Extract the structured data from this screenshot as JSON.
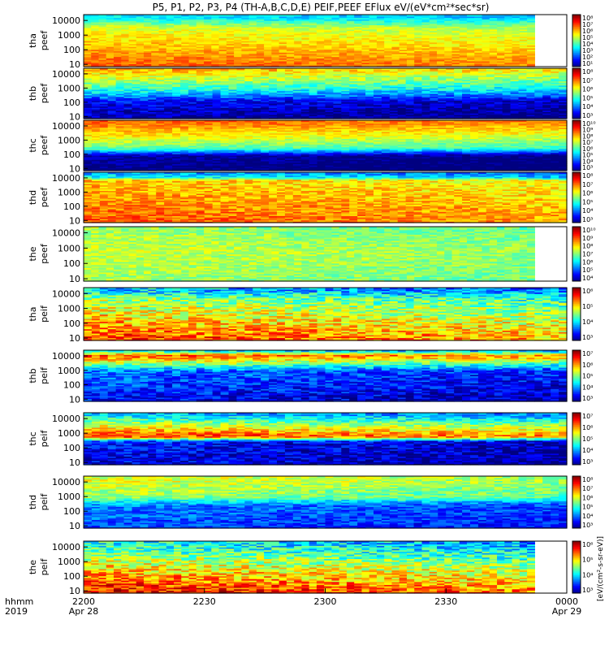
{
  "chart_data": {
    "type": "heatmap",
    "title": "P5, P1, P2, P3, P4 (TH-A,B,C,D,E) PEIF,PEEF EFlux eV/(eV*cm²*sec*sr)",
    "x_axis": {
      "row_labels": [
        "hhmm",
        "2019"
      ],
      "ticks": [
        {
          "label": "2200",
          "sublabel": "Apr 28",
          "t": 0
        },
        {
          "label": "2230",
          "sublabel": "",
          "t": 30
        },
        {
          "label": "2300",
          "sublabel": "",
          "t": 60
        },
        {
          "label": "2330",
          "sublabel": "",
          "t": 90
        },
        {
          "label": "0000",
          "sublabel": "Apr 29",
          "t": 120
        }
      ],
      "range_minutes": [
        0,
        120
      ]
    },
    "y_axis": {
      "scale": "log",
      "range_eV": [
        7,
        25000
      ],
      "tick_labels": [
        "10000",
        "1000",
        "100",
        "10"
      ]
    },
    "colorbar_label": "[eV/(cm²-s-sr-eV)]",
    "colorbar_scale": "log",
    "panels": [
      {
        "probe": "tha",
        "species": "peef",
        "cbar_ticks": [
          "10⁸",
          "10⁷",
          "10⁶",
          "10⁵",
          "10⁴",
          "10³",
          "10²",
          "10¹"
        ],
        "cbar_exp_range": [
          1,
          8
        ],
        "levels": [
          [
            6.6,
            0.75
          ],
          [
            5.2,
            0.95
          ],
          [
            3.5,
            1.0
          ]
        ],
        "data_end_minute": 112
      },
      {
        "probe": "thb",
        "species": "peef",
        "cbar_ticks": [
          "10⁸",
          "10⁷",
          "10⁶",
          "10⁵",
          "10⁴",
          "10³"
        ],
        "cbar_exp_range": [
          3,
          8
        ],
        "levels": [
          [
            3.2,
            0.35
          ],
          [
            3.7,
            0.6
          ],
          [
            5.2,
            1.0
          ],
          [
            6.6,
            1.0
          ]
        ],
        "data_end_minute": 120
      },
      {
        "probe": "thc",
        "species": "peef",
        "cbar_ticks": [
          "10¹⁰",
          "10⁹",
          "10⁸",
          "10⁷",
          "10⁶",
          "10⁵",
          "10⁴",
          "10³"
        ],
        "cbar_exp_range": [
          3,
          10
        ],
        "levels": [
          [
            3.0,
            0.3
          ],
          [
            3.3,
            0.45
          ],
          [
            6.3,
            0.7
          ],
          [
            7.5,
            1.0
          ],
          [
            8.6,
            1.0
          ]
        ],
        "data_end_minute": 120
      },
      {
        "probe": "thd",
        "species": "peef",
        "cbar_ticks": [
          "10⁸",
          "10⁷",
          "10⁶",
          "10⁵",
          "10⁴",
          "10³"
        ],
        "cbar_exp_range": [
          3,
          8
        ],
        "levels": [
          [
            7.0,
            0.85
          ],
          [
            6.4,
            0.9
          ],
          [
            5.0,
            1.0
          ],
          [
            4.4,
            0.9
          ]
        ],
        "data_end_minute": 120
      },
      {
        "probe": "the",
        "species": "peef",
        "cbar_ticks": [
          "10¹⁰",
          "10⁹",
          "10⁸",
          "10⁷",
          "10⁶",
          "10⁵",
          "10⁴"
        ],
        "cbar_exp_range": [
          4,
          10
        ],
        "levels": [
          [
            7.2,
            0.55
          ],
          [
            7.5,
            0.95
          ],
          [
            7.2,
            1.0
          ]
        ],
        "data_end_minute": 112
      },
      {
        "probe": "tha",
        "species": "peif",
        "cbar_ticks": [
          "10⁶",
          "10⁵",
          "10⁴",
          "10³"
        ],
        "cbar_exp_range": [
          3,
          6
        ],
        "levels": [
          [
            5.5,
            0.8
          ],
          [
            4.6,
            0.95
          ],
          [
            4.0,
            1.0
          ]
        ],
        "data_end_minute": 120
      },
      {
        "probe": "thb",
        "species": "peif",
        "cbar_ticks": [
          "10⁷",
          "10⁶",
          "10⁵",
          "10⁴",
          "10³"
        ],
        "cbar_exp_range": [
          3,
          7
        ],
        "levels": [
          [
            3.5,
            0.6
          ],
          [
            4.0,
            0.9
          ],
          [
            6.3,
            1.0
          ],
          [
            4.3,
            0.9
          ]
        ],
        "data_end_minute": 120
      },
      {
        "probe": "thc",
        "species": "peif",
        "cbar_ticks": [
          "10⁷",
          "10⁶",
          "10⁵",
          "10⁴",
          "10³"
        ],
        "cbar_exp_range": [
          3,
          7
        ],
        "levels": [
          [
            3.4,
            0.45
          ],
          [
            3.6,
            0.55
          ],
          [
            6.4,
            1.0
          ],
          [
            4.2,
            0.6
          ]
        ],
        "data_end_minute": 120
      },
      {
        "probe": "thd",
        "species": "peif",
        "cbar_ticks": [
          "10⁸",
          "10⁷",
          "10⁶",
          "10⁵",
          "10⁴",
          "10³"
        ],
        "cbar_exp_range": [
          3,
          8
        ],
        "levels": [
          [
            4.0,
            0.45
          ],
          [
            4.3,
            0.6
          ],
          [
            5.6,
            0.9
          ],
          [
            6.0,
            1.0
          ]
        ],
        "data_end_minute": 120
      },
      {
        "probe": "the",
        "species": "peif",
        "cbar_ticks": [
          "10⁶",
          "10⁵",
          "10⁴",
          "10³"
        ],
        "cbar_exp_range": [
          3,
          6
        ],
        "levels": [
          [
            5.7,
            0.6
          ],
          [
            4.8,
            0.95
          ],
          [
            4.2,
            1.0
          ]
        ],
        "data_end_minute": 112
      }
    ]
  }
}
